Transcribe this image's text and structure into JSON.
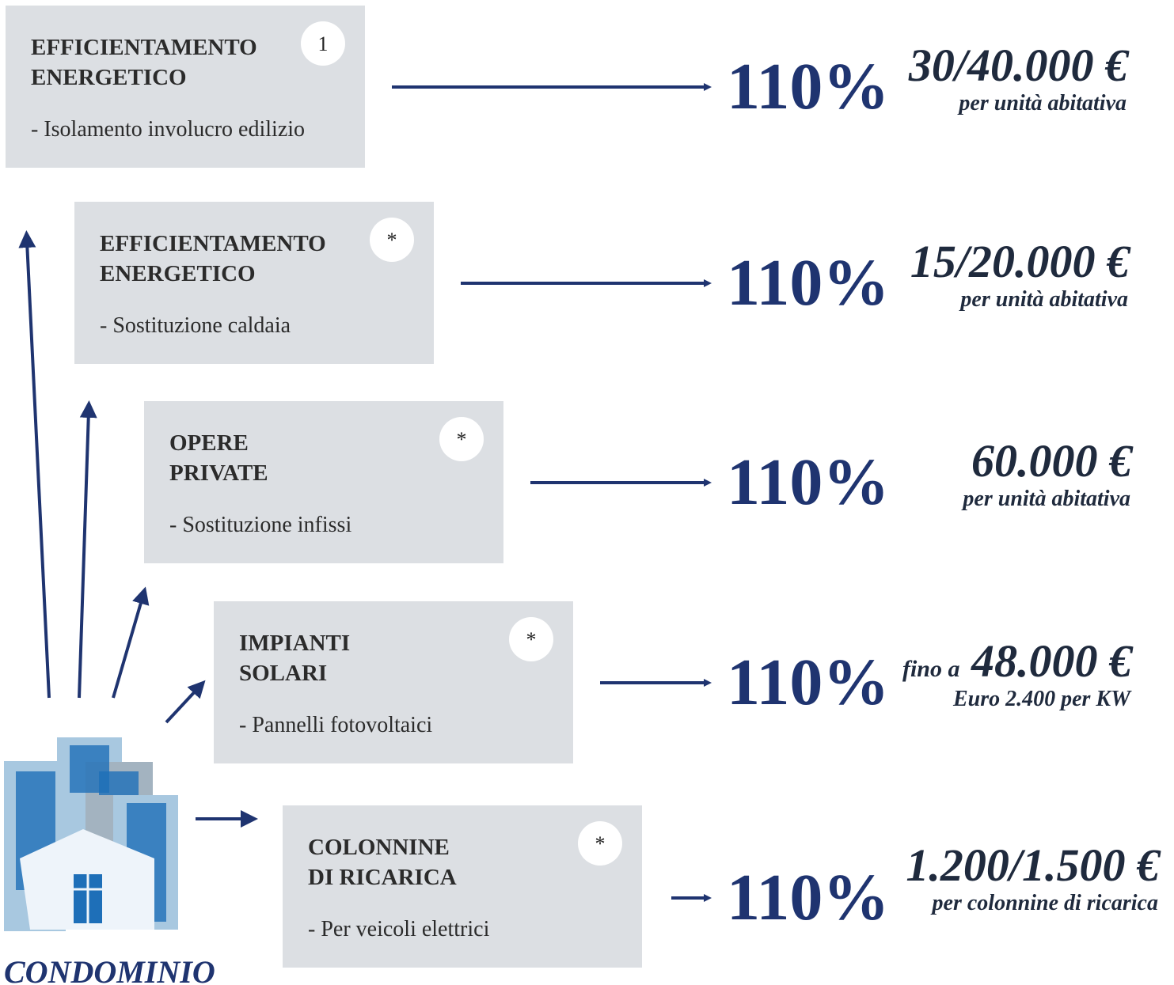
{
  "rows": [
    {
      "title": [
        "EFFICIENTAMENTO",
        "ENERGETICO"
      ],
      "item": "- Isolamento involucro edilizio",
      "badge": "1",
      "percent": "110%",
      "amount": "30/40.000 €",
      "note": "per unità abitativa"
    },
    {
      "title": [
        "EFFICIENTAMENTO",
        "ENERGETICO"
      ],
      "item": "- Sostituzione caldaia",
      "badge": "*",
      "percent": "110%",
      "amount": "15/20.000 €",
      "note": "per unità abitativa"
    },
    {
      "title": [
        "OPERE",
        "PRIVATE"
      ],
      "item": "- Sostituzione infissi",
      "badge": "*",
      "percent": "110%",
      "amount": "60.000 €",
      "note": "per unità abitativa"
    },
    {
      "title": [
        "IMPIANTI",
        "SOLARI"
      ],
      "item": "- Pannelli fotovoltaici",
      "badge": "*",
      "percent": "110%",
      "prefix": "fino a",
      "amount": "48.000 €",
      "note": "Euro 2.400 per KW"
    },
    {
      "title": [
        "COLONNINE",
        "DI RICARICA"
      ],
      "item": "- Per veicoli elettrici",
      "badge": "*",
      "percent": "110%",
      "amount": "1.200/1.500 €",
      "note": "per colonnine di ricarica"
    }
  ],
  "label": "CONDOMINIO"
}
